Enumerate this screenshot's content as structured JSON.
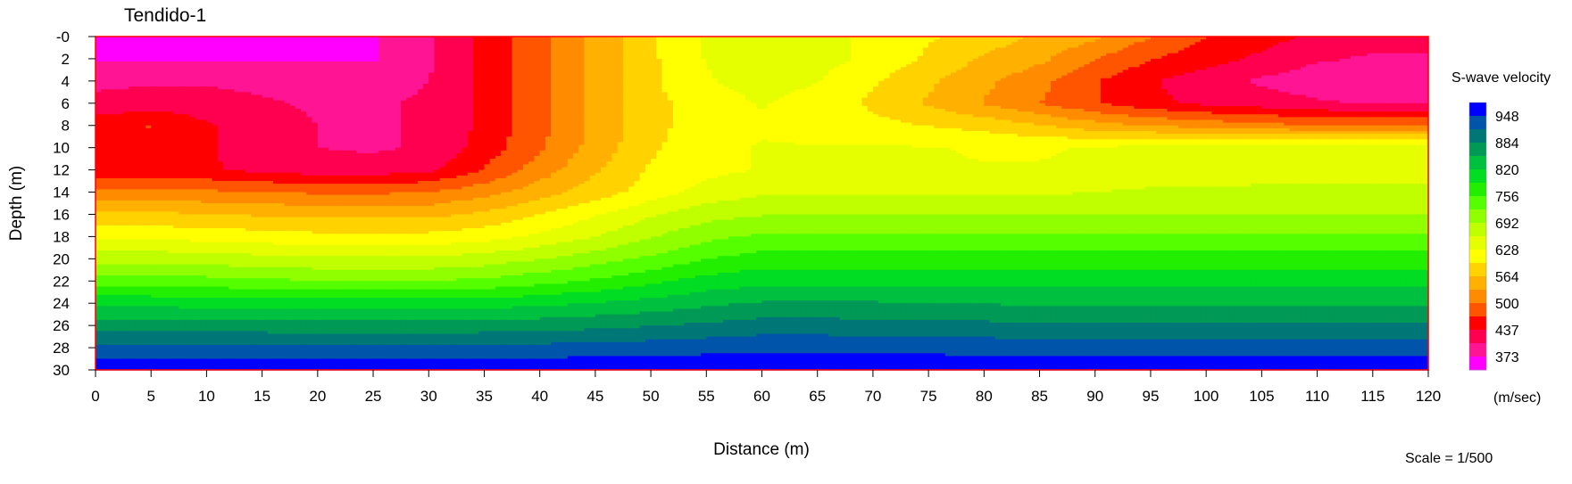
{
  "chart_data": {
    "type": "heatmap",
    "title": "Tendido-1",
    "xlabel": "Distance (m)",
    "ylabel": "Depth (m)",
    "xlim": [
      0,
      120
    ],
    "ylim": [
      0,
      30
    ],
    "x_ticks": [
      "0",
      "5",
      "10",
      "15",
      "20",
      "25",
      "30",
      "35",
      "40",
      "45",
      "50",
      "55",
      "60",
      "65",
      "70",
      "75",
      "80",
      "85",
      "90",
      "95",
      "100",
      "105",
      "110",
      "115",
      "120"
    ],
    "y_ticks": [
      "-0",
      "2",
      "4",
      "6",
      "8",
      "10",
      "12",
      "14",
      "16",
      "18",
      "20",
      "22",
      "24",
      "26",
      "28",
      "30"
    ],
    "legend_title": "S-wave velocity",
    "legend_unit": "(m/sec)",
    "legend_labels": [
      "948",
      "884",
      "820",
      "756",
      "692",
      "628",
      "564",
      "500",
      "437",
      "373"
    ],
    "scale_text": "Scale = 1/500",
    "x_nodes": [
      0,
      5,
      10,
      15,
      20,
      25,
      30,
      35,
      40,
      45,
      50,
      55,
      60,
      65,
      70,
      75,
      80,
      85,
      90,
      95,
      100,
      105,
      110,
      115,
      120
    ],
    "depth_nodes": [
      0,
      2,
      4,
      6,
      8,
      10,
      12,
      14,
      16,
      18,
      20,
      22,
      24,
      26,
      28,
      30
    ],
    "velocity_grid": [
      [
        370,
        370,
        370,
        370,
        370,
        370,
        400,
        445,
        490,
        540,
        590,
        630,
        645,
        640,
        620,
        600,
        580,
        560,
        540,
        500,
        470,
        450,
        430,
        420,
        420
      ],
      [
        370,
        370,
        370,
        370,
        370,
        370,
        400,
        445,
        490,
        540,
        590,
        630,
        645,
        640,
        620,
        590,
        560,
        540,
        500,
        470,
        450,
        430,
        410,
        400,
        400
      ],
      [
        400,
        400,
        400,
        395,
        390,
        390,
        405,
        445,
        490,
        540,
        590,
        625,
        640,
        630,
        600,
        570,
        540,
        510,
        470,
        440,
        420,
        400,
        385,
        380,
        380
      ],
      [
        410,
        420,
        420,
        410,
        400,
        400,
        410,
        445,
        490,
        540,
        585,
        615,
        630,
        615,
        590,
        560,
        530,
        500,
        470,
        445,
        430,
        420,
        410,
        400,
        400
      ],
      [
        460,
        470,
        440,
        420,
        405,
        400,
        410,
        445,
        490,
        540,
        585,
        615,
        625,
        615,
        605,
        595,
        585,
        565,
        545,
        530,
        520,
        510,
        500,
        500,
        500
      ],
      [
        450,
        450,
        440,
        425,
        405,
        400,
        410,
        450,
        495,
        545,
        590,
        620,
        630,
        630,
        630,
        630,
        625,
        625,
        630,
        640,
        645,
        650,
        650,
        650,
        650
      ],
      [
        440,
        440,
        440,
        430,
        420,
        420,
        430,
        470,
        515,
        560,
        600,
        620,
        630,
        630,
        630,
        630,
        630,
        630,
        635,
        640,
        645,
        650,
        650,
        650,
        650
      ],
      [
        510,
        510,
        505,
        500,
        495,
        495,
        500,
        520,
        550,
        580,
        610,
        640,
        655,
        655,
        655,
        655,
        655,
        655,
        660,
        665,
        665,
        665,
        665,
        665,
        665
      ],
      [
        570,
        570,
        565,
        560,
        555,
        555,
        555,
        570,
        595,
        625,
        655,
        680,
        690,
        690,
        690,
        690,
        690,
        690,
        690,
        690,
        690,
        690,
        690,
        690,
        690
      ],
      [
        620,
        620,
        615,
        610,
        605,
        605,
        605,
        615,
        635,
        660,
        690,
        715,
        730,
        730,
        730,
        730,
        730,
        730,
        730,
        730,
        730,
        730,
        730,
        730,
        730
      ],
      [
        680,
        680,
        675,
        670,
        665,
        665,
        665,
        675,
        690,
        710,
        730,
        755,
        770,
        770,
        770,
        770,
        770,
        770,
        770,
        770,
        770,
        770,
        770,
        770,
        770
      ],
      [
        740,
        740,
        735,
        730,
        725,
        725,
        725,
        730,
        745,
        760,
        780,
        800,
        810,
        810,
        810,
        810,
        808,
        808,
        808,
        808,
        808,
        808,
        808,
        808,
        808
      ],
      [
        810,
        810,
        808,
        806,
        804,
        804,
        804,
        806,
        812,
        822,
        832,
        845,
        855,
        855,
        855,
        852,
        850,
        848,
        848,
        848,
        848,
        848,
        848,
        848,
        848
      ],
      [
        868,
        868,
        867,
        866,
        865,
        865,
        865,
        866,
        870,
        875,
        882,
        890,
        898,
        898,
        896,
        894,
        892,
        890,
        890,
        890,
        890,
        890,
        890,
        890,
        890
      ],
      [
        925,
        925,
        924,
        924,
        923,
        923,
        923,
        924,
        926,
        928,
        932,
        936,
        940,
        940,
        938,
        936,
        935,
        935,
        935,
        935,
        935,
        935,
        935,
        935,
        935
      ],
      [
        975,
        975,
        975,
        975,
        975,
        975,
        975,
        975,
        975,
        975,
        975,
        975,
        975,
        975,
        975,
        975,
        975,
        975,
        975,
        975,
        975,
        975,
        975,
        975,
        975
      ]
    ],
    "color_scale": [
      {
        "min": 0,
        "color": "#ff00ff"
      },
      {
        "min": 373,
        "color": "#ff1493"
      },
      {
        "min": 405,
        "color": "#ff0050"
      },
      {
        "min": 437,
        "color": "#ff0000"
      },
      {
        "min": 468,
        "color": "#ff5500"
      },
      {
        "min": 500,
        "color": "#ff8c00"
      },
      {
        "min": 532,
        "color": "#ffb000"
      },
      {
        "min": 564,
        "color": "#ffd200"
      },
      {
        "min": 596,
        "color": "#ffff00"
      },
      {
        "min": 628,
        "color": "#e6ff00"
      },
      {
        "min": 660,
        "color": "#c0ff00"
      },
      {
        "min": 692,
        "color": "#90ff00"
      },
      {
        "min": 724,
        "color": "#55ff00"
      },
      {
        "min": 756,
        "color": "#22ee00"
      },
      {
        "min": 788,
        "color": "#00dd22"
      },
      {
        "min": 820,
        "color": "#00c040"
      },
      {
        "min": 852,
        "color": "#009955"
      },
      {
        "min": 884,
        "color": "#007777"
      },
      {
        "min": 916,
        "color": "#0055aa"
      },
      {
        "min": 948,
        "color": "#0000ff"
      }
    ]
  }
}
